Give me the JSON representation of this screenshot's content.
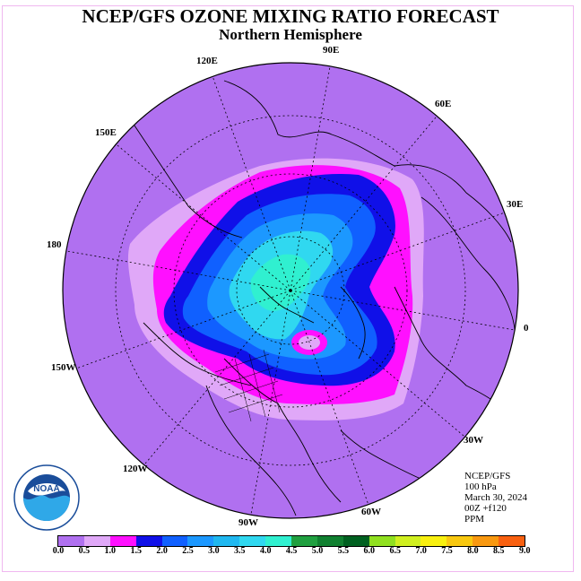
{
  "title": "NCEP/GFS OZONE MIXING RATIO FORECAST",
  "subtitle": "Northern Hemisphere",
  "longitude_labels": [
    "90E",
    "60E",
    "30E",
    "0",
    "30W",
    "60W",
    "90W",
    "120W",
    "150W",
    "180",
    "150E",
    "120E"
  ],
  "info": {
    "model": "NCEP/GFS",
    "level": "100 hPa",
    "date": "March 30, 2024",
    "run": "00Z +f120",
    "units": "PPM"
  },
  "logo_text": "NOAA",
  "colorbar": {
    "ticks": [
      "0.0",
      "0.5",
      "1.0",
      "1.5",
      "2.0",
      "2.5",
      "3.0",
      "3.5",
      "4.0",
      "4.5",
      "5.0",
      "5.5",
      "6.0",
      "6.5",
      "7.0",
      "7.5",
      "8.0",
      "8.5",
      "9.0"
    ],
    "colors": [
      "#b070f0",
      "#e0a8f8",
      "#ff10ff",
      "#1010e8",
      "#1060ff",
      "#1c98ff",
      "#20b8f0",
      "#30d8f0",
      "#30f0d0",
      "#20a040",
      "#108030",
      "#006020",
      "#90e020",
      "#d0f020",
      "#f8f010",
      "#f8c810",
      "#f89810",
      "#f86010",
      "#f00000",
      "#c00000",
      "#8c5028"
    ]
  },
  "colors": {
    "ocean_fill": "#b070f0",
    "frame": "#f0b8f0"
  }
}
